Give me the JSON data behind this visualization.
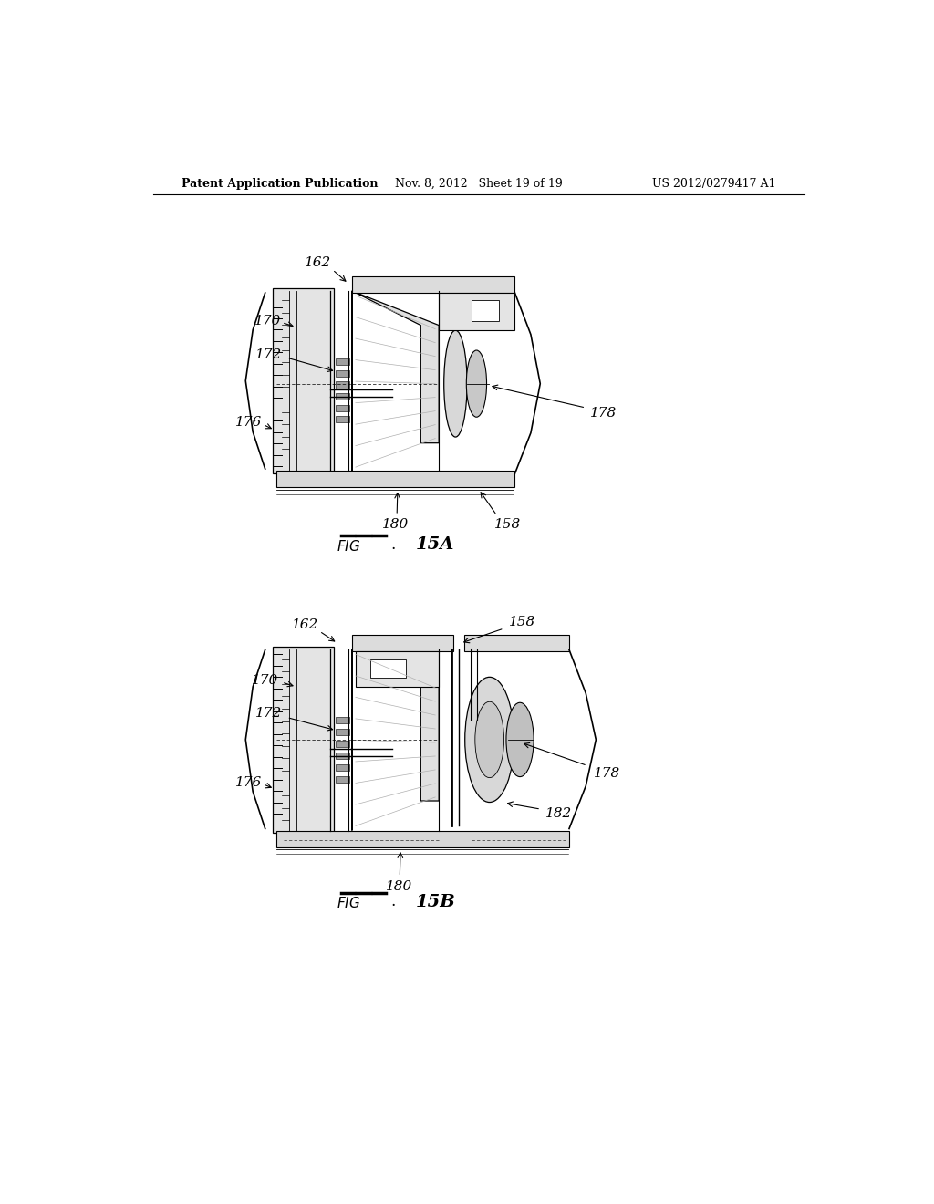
{
  "background_color": "#ffffff",
  "header_left": "Patent Application Publication",
  "header_mid": "Nov. 8, 2012   Sheet 19 of 19",
  "header_right": "US 2012/0279417 A1",
  "fig_a_label": "FIG. 15A",
  "fig_b_label": "FIG. 15B"
}
